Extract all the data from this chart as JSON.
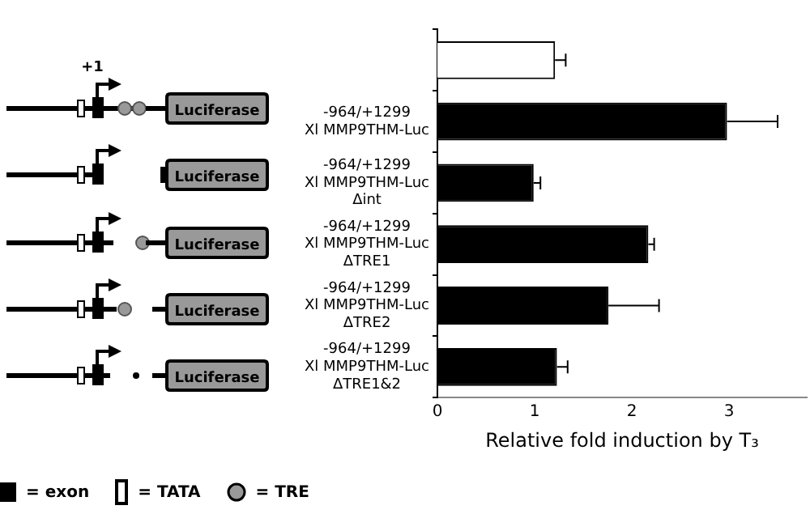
{
  "chart_data": {
    "type": "bar",
    "orientation": "horizontal",
    "categories": [
      null,
      "-964/+1299\nXl MMP9THM-Luc",
      "-964/+1299\nXl MMP9THM-Luc\nΔint",
      "-964/+1299\nXl MMP9THM-Luc\nΔTRE1",
      "-964/+1299\nXl MMP9THM-Luc\nΔTRE2",
      "-964/+1299\nXl MMP9THM-Luc\nΔTRE1&2"
    ],
    "values": [
      1.21,
      2.98,
      0.99,
      2.17,
      1.76,
      1.23
    ],
    "colors": [
      "#ffffff",
      "#000000",
      "#000000",
      "#000000",
      "#000000",
      "#000000"
    ],
    "errors": [
      [
        1.21,
        1.32
      ],
      [
        2.98,
        3.5
      ],
      [
        0.99,
        1.06
      ],
      [
        2.17,
        2.23
      ],
      [
        1.76,
        2.28
      ],
      [
        1.23,
        1.34
      ]
    ],
    "xlim": [
      0,
      3.8
    ],
    "xticks": [
      0,
      1,
      2,
      3
    ],
    "xlabel": "Relative fold induction by T₃",
    "annotations": [
      "+1",
      "Luciferase",
      "Luciferase",
      "Luciferase",
      "Luciferase",
      "Luciferase",
      "= exon",
      "= TATA",
      "= TRE"
    ],
    "grid": false,
    "legend": false
  }
}
